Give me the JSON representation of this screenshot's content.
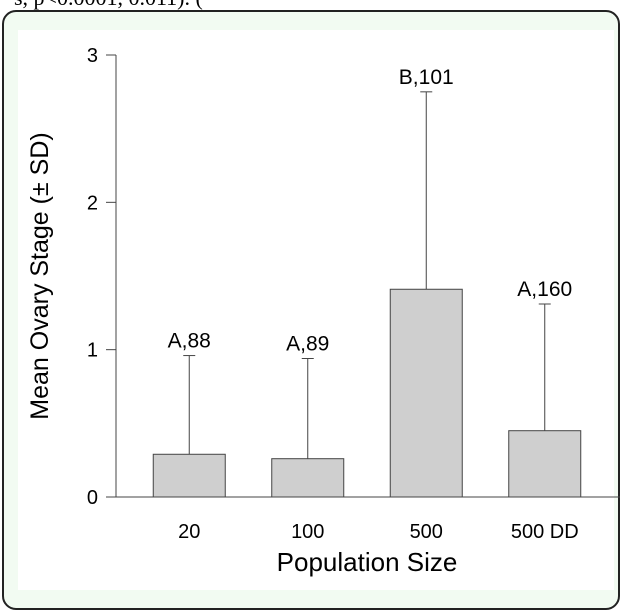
{
  "caption": "s, p<0.0001, 0.011). (",
  "colors": {
    "bar_fill": "#cfcfcf",
    "bar_stroke": "#444444",
    "frame_bg": "#f2fbf2"
  },
  "chart_data": {
    "type": "bar",
    "title": "",
    "xlabel": "Population Size",
    "ylabel": "Mean Ovary Stage (± SD)",
    "categories": [
      "20",
      "100",
      "500",
      "500 DD"
    ],
    "values": [
      0.29,
      0.26,
      1.41,
      0.45
    ],
    "error_upper": [
      0.96,
      0.94,
      2.75,
      1.31
    ],
    "bar_labels": [
      "A,88",
      "A,89",
      "B,101",
      "A,160"
    ],
    "ylim": [
      0,
      3
    ],
    "yticks": [
      "0",
      "1",
      "2",
      "3"
    ],
    "grid": false,
    "legend": "none"
  }
}
